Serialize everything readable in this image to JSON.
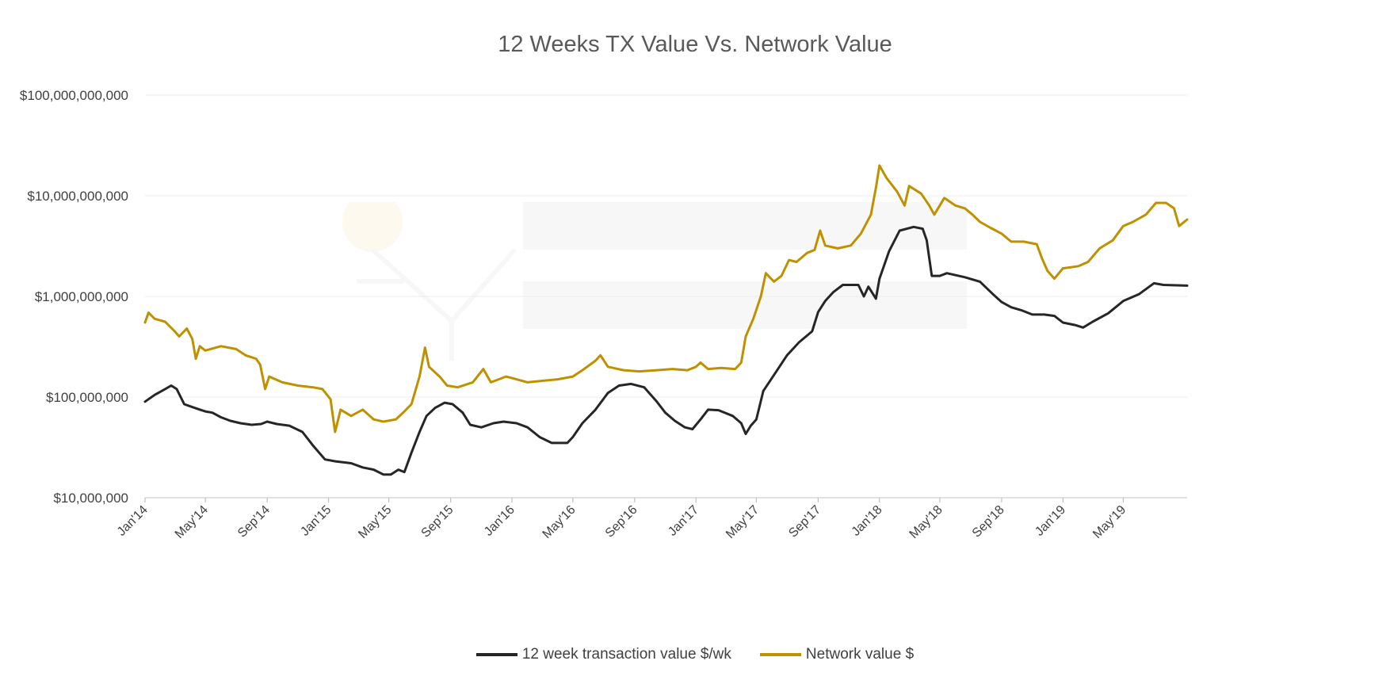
{
  "chart_data": {
    "type": "line",
    "title": "12 Weeks TX Value Vs. Network Value",
    "xlabel": "",
    "ylabel": "",
    "yscale": "log",
    "ylim": [
      10000000,
      100000000000
    ],
    "xlim": [
      "2014-01-01",
      "2019-09-05"
    ],
    "y_ticks": [
      {
        "value": 10000000,
        "label": "$10,000,000"
      },
      {
        "value": 100000000,
        "label": "$100,000,000"
      },
      {
        "value": 1000000000,
        "label": "$1,000,000,000"
      },
      {
        "value": 10000000000,
        "label": "$10,000,000,000"
      },
      {
        "value": 100000000000,
        "label": "$100,000,000,000"
      }
    ],
    "x_ticks": [
      {
        "date": "2014-01-01",
        "label": "Jan'14"
      },
      {
        "date": "2014-05-01",
        "label": "May'14"
      },
      {
        "date": "2014-09-01",
        "label": "Sep'14"
      },
      {
        "date": "2015-01-01",
        "label": "Jan'15"
      },
      {
        "date": "2015-05-01",
        "label": "May'15"
      },
      {
        "date": "2015-09-01",
        "label": "Sep'15"
      },
      {
        "date": "2016-01-01",
        "label": "Jan'16"
      },
      {
        "date": "2016-05-01",
        "label": "May'16"
      },
      {
        "date": "2016-09-01",
        "label": "Sep'16"
      },
      {
        "date": "2017-01-01",
        "label": "Jan'17"
      },
      {
        "date": "2017-05-01",
        "label": "May'17"
      },
      {
        "date": "2017-09-01",
        "label": "Sep'17"
      },
      {
        "date": "2018-01-01",
        "label": "Jan'18"
      },
      {
        "date": "2018-05-01",
        "label": "May'18"
      },
      {
        "date": "2018-09-01",
        "label": "Sep'18"
      },
      {
        "date": "2019-01-01",
        "label": "Jan'19"
      },
      {
        "date": "2019-05-01",
        "label": "May'19"
      }
    ],
    "grid": true,
    "legend_position": "bottom",
    "series": [
      {
        "name": "12 week transaction value $/wk",
        "color": "#262626",
        "points": [
          [
            "2014-01-01",
            90000000
          ],
          [
            "2014-01-20",
            105000000
          ],
          [
            "2014-02-10",
            120000000
          ],
          [
            "2014-02-22",
            130000000
          ],
          [
            "2014-03-05",
            120000000
          ],
          [
            "2014-03-20",
            85000000
          ],
          [
            "2014-04-10",
            78000000
          ],
          [
            "2014-05-01",
            72000000
          ],
          [
            "2014-05-15",
            70000000
          ],
          [
            "2014-06-01",
            63000000
          ],
          [
            "2014-06-20",
            58000000
          ],
          [
            "2014-07-10",
            55000000
          ],
          [
            "2014-08-01",
            53000000
          ],
          [
            "2014-08-20",
            54000000
          ],
          [
            "2014-09-01",
            57000000
          ],
          [
            "2014-09-20",
            54000000
          ],
          [
            "2014-10-15",
            52000000
          ],
          [
            "2014-11-10",
            45000000
          ],
          [
            "2014-12-01",
            33000000
          ],
          [
            "2014-12-25",
            24000000
          ],
          [
            "2015-01-15",
            23000000
          ],
          [
            "2015-02-15",
            22000000
          ],
          [
            "2015-03-10",
            20000000
          ],
          [
            "2015-04-01",
            19000000
          ],
          [
            "2015-04-20",
            17000000
          ],
          [
            "2015-05-05",
            17000000
          ],
          [
            "2015-05-20",
            19000000
          ],
          [
            "2015-06-01",
            18000000
          ],
          [
            "2015-06-15",
            28000000
          ],
          [
            "2015-07-01",
            45000000
          ],
          [
            "2015-07-15",
            65000000
          ],
          [
            "2015-08-01",
            78000000
          ],
          [
            "2015-08-20",
            88000000
          ],
          [
            "2015-09-05",
            85000000
          ],
          [
            "2015-09-25",
            70000000
          ],
          [
            "2015-10-10",
            53000000
          ],
          [
            "2015-11-01",
            50000000
          ],
          [
            "2015-11-25",
            55000000
          ],
          [
            "2015-12-15",
            57000000
          ],
          [
            "2016-01-10",
            55000000
          ],
          [
            "2016-02-01",
            50000000
          ],
          [
            "2016-02-25",
            40000000
          ],
          [
            "2016-03-20",
            35000000
          ],
          [
            "2016-04-20",
            35000000
          ],
          [
            "2016-05-01",
            40000000
          ],
          [
            "2016-05-20",
            55000000
          ],
          [
            "2016-06-15",
            75000000
          ],
          [
            "2016-07-10",
            110000000
          ],
          [
            "2016-08-01",
            130000000
          ],
          [
            "2016-08-25",
            135000000
          ],
          [
            "2016-09-20",
            125000000
          ],
          [
            "2016-10-15",
            90000000
          ],
          [
            "2016-11-01",
            70000000
          ],
          [
            "2016-11-20",
            58000000
          ],
          [
            "2016-12-10",
            50000000
          ],
          [
            "2016-12-25",
            48000000
          ],
          [
            "2017-01-10",
            60000000
          ],
          [
            "2017-01-25",
            75000000
          ],
          [
            "2017-02-15",
            74000000
          ],
          [
            "2017-03-15",
            65000000
          ],
          [
            "2017-04-01",
            55000000
          ],
          [
            "2017-04-10",
            43000000
          ],
          [
            "2017-04-20",
            52000000
          ],
          [
            "2017-05-01",
            60000000
          ],
          [
            "2017-05-15",
            115000000
          ],
          [
            "2017-06-10",
            180000000
          ],
          [
            "2017-07-01",
            260000000
          ],
          [
            "2017-07-25",
            350000000
          ],
          [
            "2017-08-20",
            450000000
          ],
          [
            "2017-09-01",
            700000000
          ],
          [
            "2017-09-15",
            900000000
          ],
          [
            "2017-10-01",
            1100000000
          ],
          [
            "2017-10-20",
            1300000000
          ],
          [
            "2017-11-20",
            1300000000
          ],
          [
            "2017-12-01",
            1000000000
          ],
          [
            "2017-12-10",
            1250000000
          ],
          [
            "2017-12-25",
            950000000
          ],
          [
            "2018-01-01",
            1500000000
          ],
          [
            "2018-01-20",
            2800000000
          ],
          [
            "2018-02-10",
            4500000000
          ],
          [
            "2018-03-10",
            4900000000
          ],
          [
            "2018-03-28",
            4700000000
          ],
          [
            "2018-04-05",
            3600000000
          ],
          [
            "2018-04-15",
            1600000000
          ],
          [
            "2018-05-01",
            1600000000
          ],
          [
            "2018-05-15",
            1700000000
          ],
          [
            "2018-06-20",
            1550000000
          ],
          [
            "2018-07-20",
            1400000000
          ],
          [
            "2018-08-15",
            1050000000
          ],
          [
            "2018-09-01",
            880000000
          ],
          [
            "2018-09-20",
            780000000
          ],
          [
            "2018-10-10",
            730000000
          ],
          [
            "2018-11-01",
            660000000
          ],
          [
            "2018-11-25",
            660000000
          ],
          [
            "2018-12-15",
            640000000
          ],
          [
            "2019-01-01",
            550000000
          ],
          [
            "2019-01-25",
            520000000
          ],
          [
            "2019-02-10",
            490000000
          ],
          [
            "2019-03-01",
            560000000
          ],
          [
            "2019-04-01",
            680000000
          ],
          [
            "2019-05-01",
            900000000
          ],
          [
            "2019-06-01",
            1050000000
          ],
          [
            "2019-07-01",
            1350000000
          ],
          [
            "2019-07-20",
            1300000000
          ],
          [
            "2019-09-05",
            1280000000
          ]
        ]
      },
      {
        "name": "Network value $",
        "color": "#BF9000",
        "points": [
          [
            "2014-01-01",
            550000000
          ],
          [
            "2014-01-08",
            690000000
          ],
          [
            "2014-01-20",
            600000000
          ],
          [
            "2014-02-10",
            560000000
          ],
          [
            "2014-03-01",
            450000000
          ],
          [
            "2014-03-10",
            400000000
          ],
          [
            "2014-03-25",
            480000000
          ],
          [
            "2014-04-05",
            380000000
          ],
          [
            "2014-04-12",
            240000000
          ],
          [
            "2014-04-20",
            320000000
          ],
          [
            "2014-05-01",
            290000000
          ],
          [
            "2014-06-01",
            320000000
          ],
          [
            "2014-07-01",
            300000000
          ],
          [
            "2014-07-20",
            260000000
          ],
          [
            "2014-08-10",
            240000000
          ],
          [
            "2014-08-18",
            210000000
          ],
          [
            "2014-08-28",
            120000000
          ],
          [
            "2014-09-05",
            160000000
          ],
          [
            "2014-10-01",
            140000000
          ],
          [
            "2014-11-01",
            130000000
          ],
          [
            "2014-12-01",
            125000000
          ],
          [
            "2014-12-20",
            120000000
          ],
          [
            "2015-01-05",
            95000000
          ],
          [
            "2015-01-14",
            45000000
          ],
          [
            "2015-01-25",
            75000000
          ],
          [
            "2015-02-15",
            65000000
          ],
          [
            "2015-03-10",
            75000000
          ],
          [
            "2015-04-01",
            60000000
          ],
          [
            "2015-04-20",
            57000000
          ],
          [
            "2015-05-15",
            60000000
          ],
          [
            "2015-06-01",
            72000000
          ],
          [
            "2015-06-15",
            85000000
          ],
          [
            "2015-07-01",
            160000000
          ],
          [
            "2015-07-12",
            310000000
          ],
          [
            "2015-07-20",
            200000000
          ],
          [
            "2015-08-10",
            160000000
          ],
          [
            "2015-08-25",
            130000000
          ],
          [
            "2015-09-15",
            125000000
          ],
          [
            "2015-10-15",
            140000000
          ],
          [
            "2015-11-05",
            190000000
          ],
          [
            "2015-11-20",
            140000000
          ],
          [
            "2015-12-20",
            160000000
          ],
          [
            "2016-01-10",
            150000000
          ],
          [
            "2016-02-01",
            140000000
          ],
          [
            "2016-03-01",
            145000000
          ],
          [
            "2016-04-01",
            150000000
          ],
          [
            "2016-05-01",
            160000000
          ],
          [
            "2016-05-20",
            185000000
          ],
          [
            "2016-06-15",
            230000000
          ],
          [
            "2016-06-25",
            260000000
          ],
          [
            "2016-07-10",
            200000000
          ],
          [
            "2016-08-10",
            185000000
          ],
          [
            "2016-09-10",
            180000000
          ],
          [
            "2016-10-15",
            185000000
          ],
          [
            "2016-11-15",
            190000000
          ],
          [
            "2016-12-15",
            185000000
          ],
          [
            "2017-01-01",
            200000000
          ],
          [
            "2017-01-10",
            220000000
          ],
          [
            "2017-01-25",
            190000000
          ],
          [
            "2017-02-20",
            195000000
          ],
          [
            "2017-03-20",
            190000000
          ],
          [
            "2017-04-01",
            220000000
          ],
          [
            "2017-04-10",
            400000000
          ],
          [
            "2017-04-25",
            600000000
          ],
          [
            "2017-05-10",
            1000000000
          ],
          [
            "2017-05-20",
            1700000000
          ],
          [
            "2017-06-05",
            1400000000
          ],
          [
            "2017-06-20",
            1600000000
          ],
          [
            "2017-07-05",
            2300000000
          ],
          [
            "2017-07-20",
            2200000000
          ],
          [
            "2017-08-10",
            2700000000
          ],
          [
            "2017-08-25",
            2900000000
          ],
          [
            "2017-09-05",
            4500000000
          ],
          [
            "2017-09-15",
            3200000000
          ],
          [
            "2017-10-10",
            3000000000
          ],
          [
            "2017-11-05",
            3200000000
          ],
          [
            "2017-11-25",
            4200000000
          ],
          [
            "2017-12-15",
            6500000000
          ],
          [
            "2017-12-25",
            12000000000
          ],
          [
            "2018-01-01",
            20000000000
          ],
          [
            "2018-01-15",
            15000000000
          ],
          [
            "2018-02-05",
            11000000000
          ],
          [
            "2018-02-20",
            8000000000
          ],
          [
            "2018-03-01",
            12500000000
          ],
          [
            "2018-03-25",
            10500000000
          ],
          [
            "2018-04-10",
            8000000000
          ],
          [
            "2018-04-20",
            6500000000
          ],
          [
            "2018-05-01",
            8000000000
          ],
          [
            "2018-05-10",
            9500000000
          ],
          [
            "2018-06-01",
            8000000000
          ],
          [
            "2018-06-20",
            7500000000
          ],
          [
            "2018-07-05",
            6500000000
          ],
          [
            "2018-07-20",
            5500000000
          ],
          [
            "2018-08-10",
            4800000000
          ],
          [
            "2018-09-01",
            4200000000
          ],
          [
            "2018-09-20",
            3500000000
          ],
          [
            "2018-10-15",
            3500000000
          ],
          [
            "2018-11-10",
            3300000000
          ],
          [
            "2018-11-20",
            2400000000
          ],
          [
            "2018-12-01",
            1800000000
          ],
          [
            "2018-12-15",
            1500000000
          ],
          [
            "2019-01-01",
            1900000000
          ],
          [
            "2019-02-01",
            2000000000
          ],
          [
            "2019-02-20",
            2200000000
          ],
          [
            "2019-03-15",
            3000000000
          ],
          [
            "2019-04-10",
            3600000000
          ],
          [
            "2019-05-01",
            5000000000
          ],
          [
            "2019-05-20",
            5500000000
          ],
          [
            "2019-06-15",
            6500000000
          ],
          [
            "2019-07-05",
            8500000000
          ],
          [
            "2019-07-25",
            8500000000
          ],
          [
            "2019-08-10",
            7500000000
          ],
          [
            "2019-08-20",
            5000000000
          ],
          [
            "2019-09-05",
            5800000000
          ]
        ]
      }
    ]
  }
}
